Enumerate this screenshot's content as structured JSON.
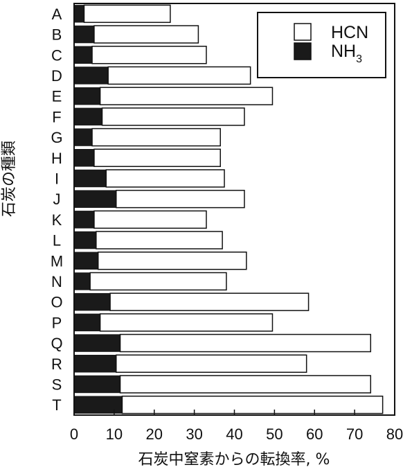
{
  "chart_data": {
    "type": "bar",
    "orientation": "horizontal",
    "stacked": true,
    "categories": [
      "A",
      "B",
      "C",
      "D",
      "E",
      "F",
      "G",
      "H",
      "I",
      "J",
      "K",
      "L",
      "M",
      "N",
      "O",
      "P",
      "Q",
      "R",
      "S",
      "T"
    ],
    "series": [
      {
        "name": "NH3",
        "color": "#1a1a1a",
        "values": [
          2.5,
          5,
          4.5,
          8.5,
          6.5,
          7,
          4.5,
          5,
          8,
          10.5,
          5,
          5.5,
          6,
          4,
          9,
          6.5,
          11.5,
          10.5,
          11.5,
          12
        ]
      },
      {
        "name": "HCN",
        "color": "#ffffff",
        "values": [
          21.5,
          26,
          28.5,
          35.5,
          43,
          35.5,
          32,
          31.5,
          29.5,
          32,
          28,
          31.5,
          37,
          34,
          49.5,
          43,
          62.5,
          47.5,
          62.5,
          65
        ]
      }
    ],
    "legend": [
      {
        "label_main": "HCN",
        "label_sub": "",
        "swatch": "#ffffff"
      },
      {
        "label_main": "NH",
        "label_sub": "3",
        "swatch": "#1a1a1a"
      }
    ],
    "legend_position": "top-right",
    "xlim": [
      0,
      80
    ],
    "xticks": [
      0,
      10,
      20,
      30,
      40,
      50,
      60,
      70,
      80
    ],
    "xlabel": "石炭中窒素からの転換率, %",
    "ylabel": "石炭の種類",
    "grid": false
  }
}
